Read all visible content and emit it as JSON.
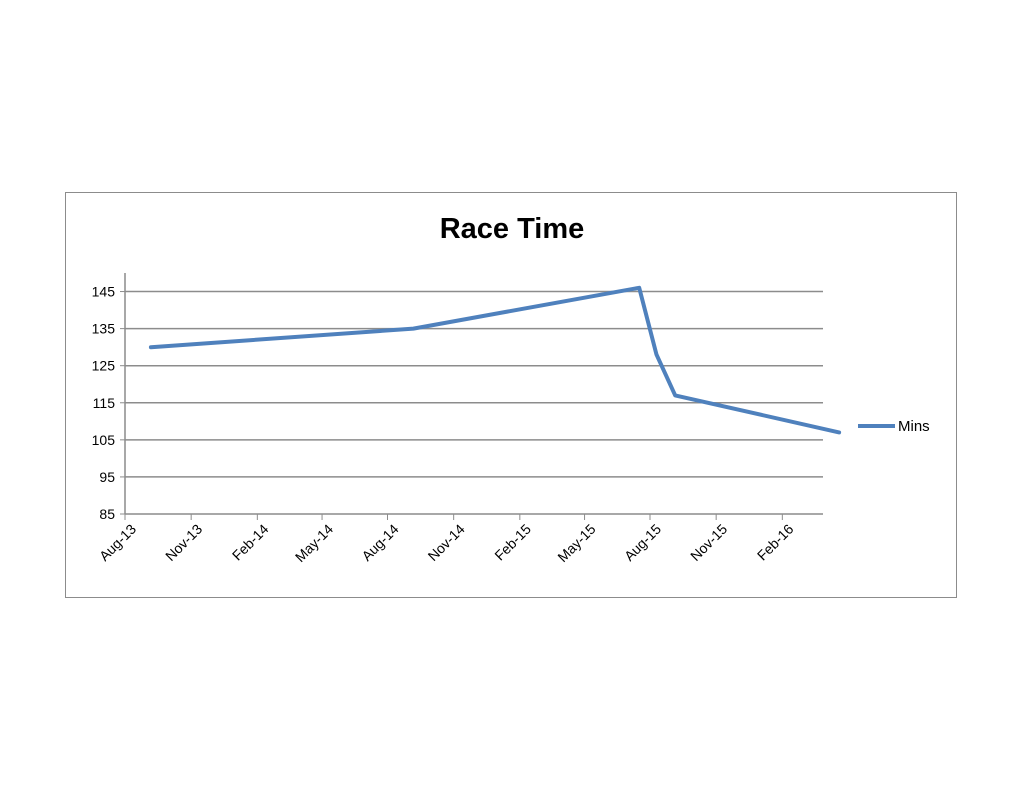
{
  "chart_data": {
    "type": "line",
    "title": "Race Time",
    "xlabel": "",
    "ylabel": "",
    "x_tick_labels": [
      "Aug-13",
      "Nov-13",
      "Feb-14",
      "May-14",
      "Aug-14",
      "Nov-14",
      "Feb-15",
      "May-15",
      "Aug-15",
      "Nov-15",
      "Feb-16"
    ],
    "ylim": [
      85,
      150
    ],
    "y_ticks": [
      85,
      95,
      105,
      115,
      125,
      135,
      145
    ],
    "grid": true,
    "legend": "right",
    "series": [
      {
        "name": "Mins",
        "color": "#4f81bd",
        "points": [
          {
            "x": "2013-08-06",
            "y": 130
          },
          {
            "x": "2014-08-06",
            "y": 135
          },
          {
            "x": "2015-06-16",
            "y": 146
          },
          {
            "x": "2015-07-10",
            "y": 128
          },
          {
            "x": "2015-08-05",
            "y": 117
          },
          {
            "x": "2016-03-20",
            "y": 107
          }
        ]
      }
    ]
  }
}
